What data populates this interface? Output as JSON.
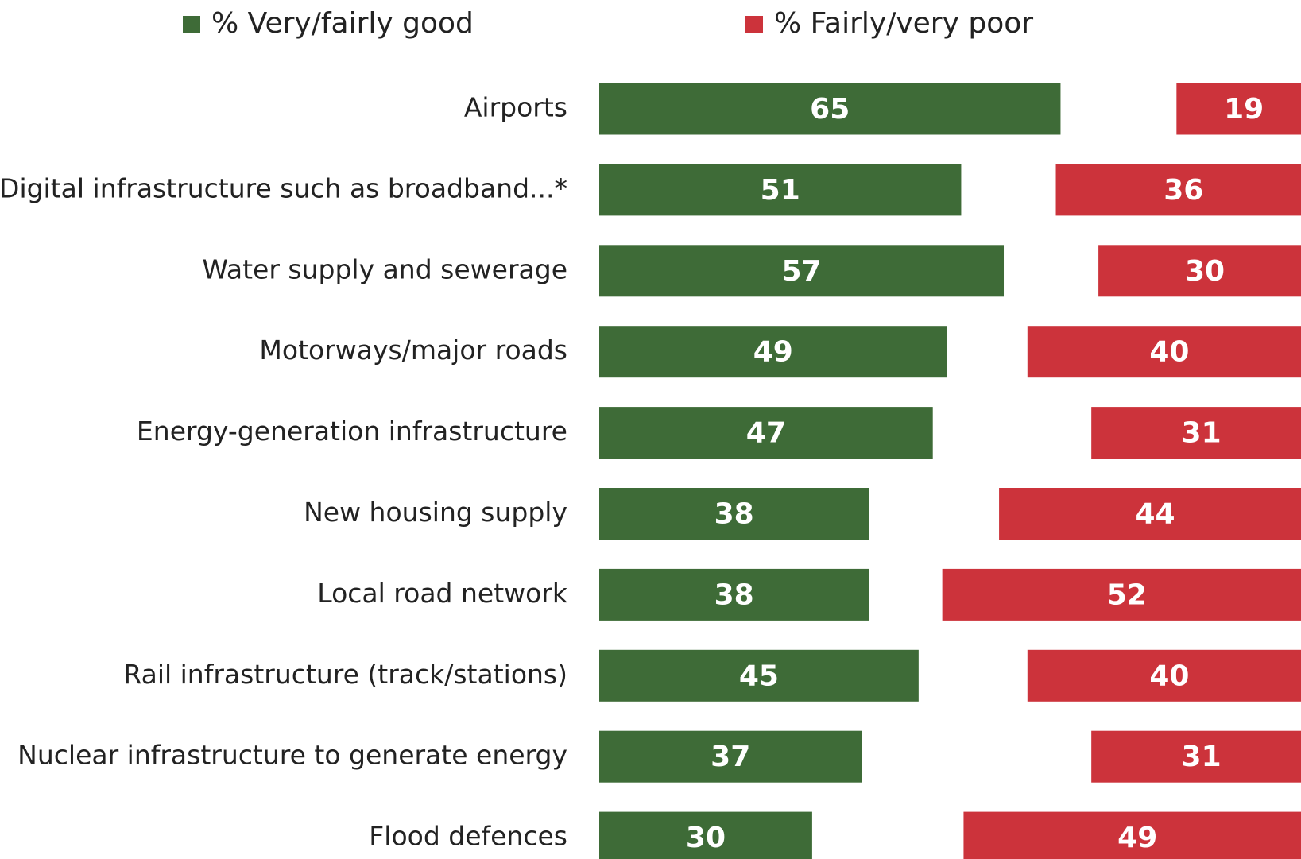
{
  "chart_data": {
    "type": "bar",
    "categories": [
      "Airports",
      "Digital infrastructure such as broadband...*",
      "Water supply and sewerage",
      "Motorways/major roads",
      "Energy-generation infrastructure",
      "New housing supply",
      "Local road network",
      "Rail infrastructure (track/stations)",
      "Nuclear infrastructure to generate energy",
      "Flood defences"
    ],
    "series": [
      {
        "name": "% Very/fairly good",
        "color": "#3e6b37",
        "values": [
          65,
          51,
          57,
          49,
          47,
          38,
          38,
          45,
          37,
          30
        ]
      },
      {
        "name": "% Fairly/very poor",
        "color": "#cc333b",
        "values": [
          19,
          36,
          30,
          40,
          31,
          44,
          52,
          40,
          31,
          49
        ]
      }
    ]
  }
}
